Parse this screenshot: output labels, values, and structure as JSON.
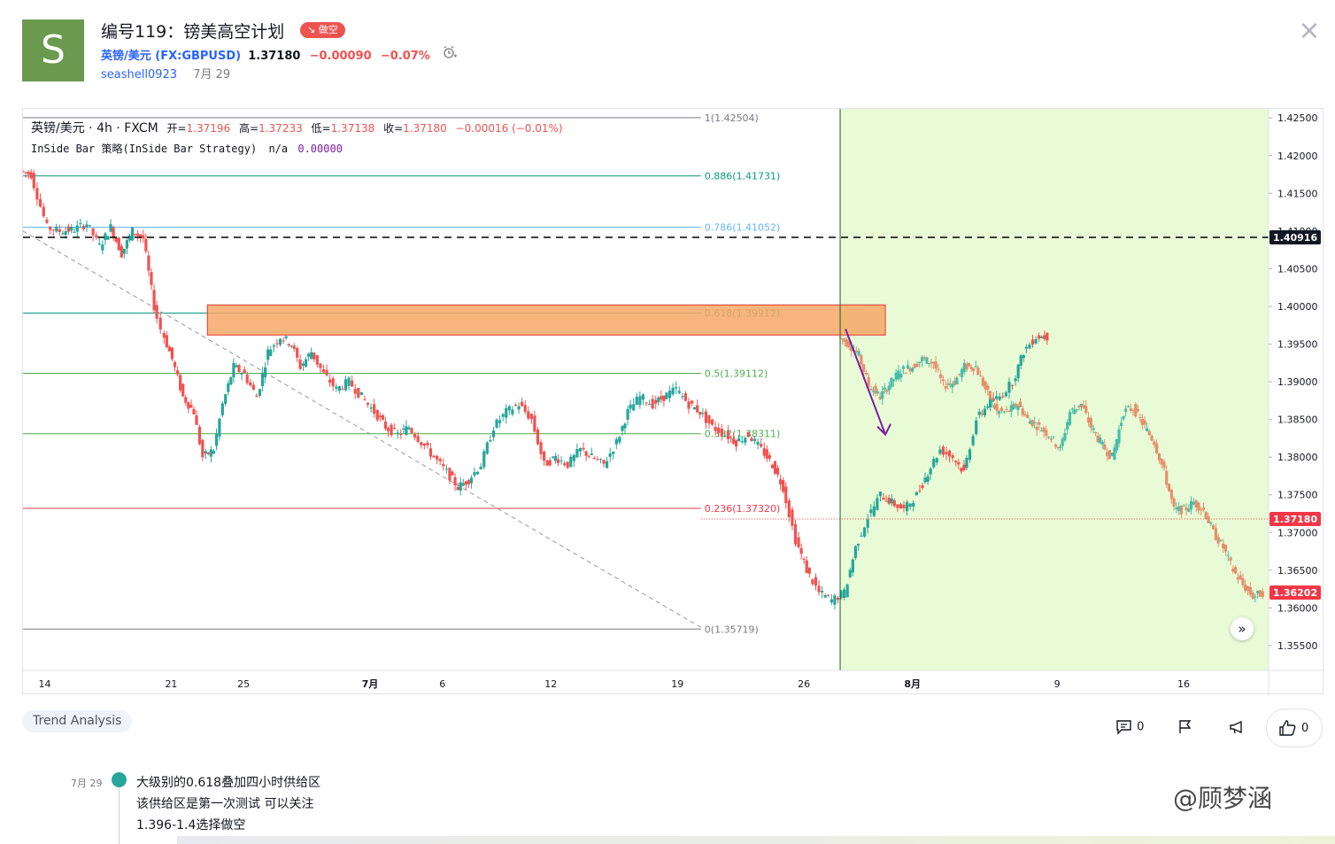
{
  "header": {
    "avatar_letter": "S",
    "title": "编号119：镑美高空计划",
    "badge": "↘ 做空",
    "symbol_link": "英镑/美元 (FX:GBPUSD)",
    "price": "1.37180",
    "change": "−0.00090",
    "change_pct": "−0.07%",
    "alarm_icon": "alarm-clock-plus-icon",
    "author": "seashell0923",
    "date": "7月 29",
    "close_glyph": "×"
  },
  "legend": {
    "symbol": "英镑/美元 · 4h · FXCM",
    "open_label": "开=",
    "open": "1.37196",
    "high_label": "高=",
    "high": "1.37233",
    "low_label": "低=",
    "low": "1.37138",
    "close_label": "收=",
    "close": "1.37180",
    "change": "−0.00016 (−0.01%)",
    "strategy": "InSide Bar 策略(InSide Bar Strategy)",
    "strategy_na": "n/a",
    "strategy_value": "0.00000"
  },
  "chart_data": {
    "type": "candlestick",
    "symbol": "FX:GBPUSD",
    "interval": "4h",
    "y_axis_ticks": [
      1.425,
      1.42,
      1.415,
      1.41,
      1.405,
      1.4,
      1.395,
      1.39,
      1.385,
      1.38,
      1.375,
      1.37,
      1.365,
      1.36,
      1.355
    ],
    "y_tick_labels": [
      "1.42500",
      "1.42000",
      "1.41500",
      "1.41000",
      "1.40500",
      "1.40000",
      "1.39500",
      "1.39000",
      "1.38500",
      "1.38000",
      "1.37500",
      "1.37000",
      "1.36500",
      "1.36000",
      "1.35500"
    ],
    "ylim": [
      1.3517,
      1.4262
    ],
    "x_tick_labels": [
      "14",
      "21",
      "25",
      "7月",
      "6",
      "12",
      "19",
      "26",
      "8月",
      "9",
      "16"
    ],
    "x_ticks_day_index": [
      0,
      7,
      11,
      18,
      22,
      28,
      35,
      42,
      48,
      56,
      63
    ],
    "x_range_days": [
      -1.2,
      67.7
    ],
    "fibonacci": [
      {
        "level": "1",
        "price": 1.42504,
        "label": "1(1.42504)",
        "color": "#787b86"
      },
      {
        "level": "0.886",
        "price": 1.41731,
        "label": "0.886(1.41731)",
        "color": "#089981"
      },
      {
        "level": "0.786",
        "price": 1.41052,
        "label": "0.786(1.41052)",
        "color": "#64b5f6"
      },
      {
        "level": "0.618",
        "price": 1.39912,
        "label": "0.618(1.39912)",
        "color": "#089981"
      },
      {
        "level": "0.5",
        "price": 1.39112,
        "label": "0.5(1.39112)",
        "color": "#4caf50"
      },
      {
        "level": "0.382",
        "price": 1.38311,
        "label": "0.382(1.38311)",
        "color": "#4caf50"
      },
      {
        "level": "0.236",
        "price": 1.3732,
        "label": "0.236(1.37320)",
        "color": "#f23645"
      },
      {
        "level": "0",
        "price": 1.35719,
        "label": "0(1.35719)",
        "color": "#787b86"
      }
    ],
    "horizontal_line": {
      "price": 1.40916,
      "label": "1.40916",
      "style": "dashed",
      "color": "#000000"
    },
    "price_lines": [
      {
        "price": 1.3718,
        "label": "1.37180",
        "color": "#f23645",
        "style": "dotted"
      },
      {
        "price": 1.36202,
        "label": "1.36202",
        "color": "#f23645",
        "style": "none"
      }
    ],
    "supply_zone": {
      "day_start": 9,
      "day_end": 46.5,
      "price_top": 1.4002,
      "price_bottom": 1.3962,
      "fill": "#f7a766",
      "border": "#e53935"
    },
    "trend_line": {
      "from": {
        "day": -1.2,
        "price": 1.41
      },
      "to": {
        "day": 36.3,
        "price": 1.3574
      },
      "style": "dashed",
      "color": "#9598a1"
    },
    "arrow": {
      "from": {
        "day": 44.3,
        "price": 1.397
      },
      "to": {
        "day": 46.5,
        "price": 1.383
      },
      "color": "#7b1fa2"
    },
    "forecast_shade": {
      "day_start": 44,
      "color": "#e8fbd6"
    },
    "vertical_line": {
      "day": 44,
      "color": "#1b5e20"
    },
    "published_close_day": 44,
    "up_color": "#26a69a",
    "down_color": "#ef5350",
    "path": [
      [
        -1.2,
        1.418
      ],
      [
        -0.6,
        1.4175
      ],
      [
        0.3,
        1.4105
      ],
      [
        1.0,
        1.41
      ],
      [
        1.8,
        1.4102
      ],
      [
        2.5,
        1.411
      ],
      [
        3.2,
        1.408
      ],
      [
        3.8,
        1.4105
      ],
      [
        4.4,
        1.407
      ],
      [
        5.0,
        1.41
      ],
      [
        5.6,
        1.409
      ],
      [
        6.2,
        1.4
      ],
      [
        6.6,
        1.397
      ],
      [
        7.2,
        1.393
      ],
      [
        7.8,
        1.388
      ],
      [
        8.4,
        1.386
      ],
      [
        8.9,
        1.38
      ],
      [
        9.5,
        1.381
      ],
      [
        10.0,
        1.387
      ],
      [
        10.6,
        1.392
      ],
      [
        11.2,
        1.391
      ],
      [
        11.9,
        1.388
      ],
      [
        12.5,
        1.394
      ],
      [
        13.2,
        1.396
      ],
      [
        13.8,
        1.395
      ],
      [
        14.3,
        1.392
      ],
      [
        14.9,
        1.394
      ],
      [
        15.6,
        1.391
      ],
      [
        16.3,
        1.389
      ],
      [
        17.0,
        1.39
      ],
      [
        17.7,
        1.388
      ],
      [
        18.4,
        1.386
      ],
      [
        19.0,
        1.384
      ],
      [
        19.7,
        1.383
      ],
      [
        20.3,
        1.384
      ],
      [
        21.0,
        1.382
      ],
      [
        21.7,
        1.38
      ],
      [
        22.4,
        1.378
      ],
      [
        23.0,
        1.376
      ],
      [
        23.6,
        1.377
      ],
      [
        24.3,
        1.379
      ],
      [
        25.0,
        1.384
      ],
      [
        25.7,
        1.386
      ],
      [
        26.4,
        1.387
      ],
      [
        27.1,
        1.385
      ],
      [
        27.8,
        1.379
      ],
      [
        28.4,
        1.38
      ],
      [
        29.1,
        1.379
      ],
      [
        29.8,
        1.381
      ],
      [
        30.4,
        1.38
      ],
      [
        31.1,
        1.379
      ],
      [
        31.8,
        1.382
      ],
      [
        32.4,
        1.386
      ],
      [
        33.1,
        1.388
      ],
      [
        33.8,
        1.387
      ],
      [
        34.4,
        1.388
      ],
      [
        35.1,
        1.389
      ],
      [
        35.8,
        1.387
      ],
      [
        36.4,
        1.386
      ],
      [
        37.1,
        1.384
      ],
      [
        37.8,
        1.383
      ],
      [
        38.4,
        1.382
      ],
      [
        39.1,
        1.383
      ],
      [
        39.8,
        1.381
      ],
      [
        40.4,
        1.379
      ],
      [
        41.0,
        1.376
      ],
      [
        41.7,
        1.369
      ],
      [
        42.3,
        1.365
      ],
      [
        43.0,
        1.362
      ],
      [
        43.7,
        1.361
      ],
      [
        44.4,
        1.362
      ],
      [
        45.0,
        1.368
      ],
      [
        45.7,
        1.372
      ],
      [
        46.4,
        1.375
      ],
      [
        47.0,
        1.374
      ],
      [
        47.7,
        1.373
      ],
      [
        48.4,
        1.375
      ],
      [
        49.0,
        1.378
      ],
      [
        49.7,
        1.381
      ],
      [
        50.4,
        1.38
      ],
      [
        51.0,
        1.378
      ],
      [
        51.7,
        1.385
      ],
      [
        52.3,
        1.387
      ],
      [
        53.0,
        1.388
      ],
      [
        53.7,
        1.39
      ],
      [
        54.3,
        1.394
      ],
      [
        55.0,
        1.396
      ],
      [
        55.6,
        1.396
      ]
    ],
    "forecast_path": [
      [
        44.0,
        1.396
      ],
      [
        44.8,
        1.395
      ],
      [
        45.5,
        1.3935
      ],
      [
        46.2,
        1.3895
      ],
      [
        47.0,
        1.388
      ],
      [
        47.8,
        1.39
      ],
      [
        48.5,
        1.3915
      ],
      [
        49.3,
        1.392
      ],
      [
        50.0,
        1.393
      ],
      [
        50.8,
        1.3925
      ],
      [
        51.5,
        1.3895
      ],
      [
        52.3,
        1.39
      ],
      [
        53.0,
        1.392
      ],
      [
        53.8,
        1.392
      ],
      [
        54.5,
        1.389
      ],
      [
        55.3,
        1.386
      ],
      [
        56.0,
        1.386
      ],
      [
        56.8,
        1.387
      ],
      [
        57.5,
        1.385
      ],
      [
        58.3,
        1.384
      ],
      [
        59.0,
        1.383
      ],
      [
        59.8,
        1.381
      ],
      [
        60.5,
        1.386
      ],
      [
        61.3,
        1.387
      ],
      [
        62.0,
        1.384
      ],
      [
        62.8,
        1.3815
      ],
      [
        63.5,
        1.38
      ],
      [
        64.3,
        1.386
      ],
      [
        65.0,
        1.3865
      ],
      [
        65.8,
        1.384
      ],
      [
        66.5,
        1.382
      ],
      [
        67.2,
        1.378
      ],
      [
        67.9,
        1.373
      ],
      [
        68.6,
        1.373
      ],
      [
        69.3,
        1.374
      ],
      [
        70.0,
        1.373
      ],
      [
        70.7,
        1.37
      ],
      [
        71.4,
        1.368
      ],
      [
        72.1,
        1.365
      ],
      [
        72.8,
        1.363
      ],
      [
        73.5,
        1.3615
      ],
      [
        74.2,
        1.362
      ]
    ]
  },
  "chart_ui": {
    "nav_glyph": "»"
  },
  "tags": {
    "trend": "Trend Analysis"
  },
  "actions": {
    "comments_count": "0",
    "likes_count": "0"
  },
  "update": {
    "date": "7月 29",
    "line1": "大级别的0.618叠加四小时供给区",
    "line2": "该供给区是第一次测试 可以关注",
    "line3": "1.396-1.4选择做空"
  },
  "watermark": "@顾梦涵"
}
